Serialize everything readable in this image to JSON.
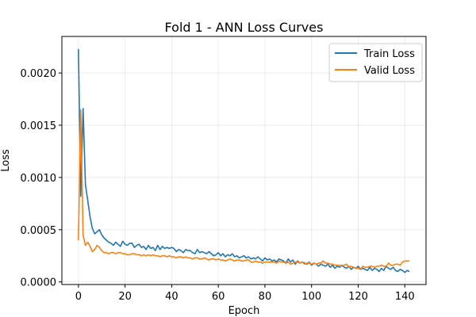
{
  "chart_data": {
    "type": "line",
    "title": "Fold 1 - ANN Loss Curves",
    "xlabel": "Epoch",
    "ylabel": "Loss",
    "xlim": [
      -7.1,
      149.1
    ],
    "ylim": [
      -2.5e-05,
      0.00235
    ],
    "xticks": [
      0,
      20,
      40,
      60,
      80,
      100,
      120,
      140
    ],
    "yticks": [
      0.0,
      0.0005,
      0.001,
      0.0015,
      0.002
    ],
    "xtick_labels": [
      "0",
      "20",
      "40",
      "60",
      "80",
      "100",
      "120",
      "140"
    ],
    "ytick_labels": [
      "0.0000",
      "0.0005",
      "0.0010",
      "0.0015",
      "0.0020"
    ],
    "grid": true,
    "legend_position": "top-right",
    "series": [
      {
        "name": "Train Loss",
        "color": "#1f77b4",
        "values": [
          0.00223,
          0.00082,
          0.00166,
          0.00093,
          0.00078,
          0.00062,
          0.00051,
          0.00046,
          0.00048,
          0.0005,
          0.00045,
          0.00042,
          0.0004,
          0.00038,
          0.00037,
          0.00035,
          0.00038,
          0.00036,
          0.00034,
          0.00039,
          0.00036,
          0.00035,
          0.00037,
          0.00037,
          0.00033,
          0.00035,
          0.00036,
          0.00033,
          0.00034,
          0.00031,
          0.00035,
          0.00032,
          0.00033,
          0.0003,
          0.00035,
          0.00031,
          0.00034,
          0.00032,
          0.00033,
          0.00032,
          0.00033,
          0.00032,
          0.00029,
          0.00031,
          0.0003,
          0.00028,
          0.00031,
          0.0003,
          0.0003,
          0.00028,
          0.00027,
          0.00031,
          0.00028,
          0.00029,
          0.00028,
          0.00027,
          0.00029,
          0.00027,
          0.00025,
          0.00026,
          0.00028,
          0.00025,
          0.00027,
          0.00024,
          0.00026,
          0.00025,
          0.00027,
          0.00024,
          0.00025,
          0.00023,
          0.00024,
          0.00025,
          0.00023,
          0.00024,
          0.00022,
          0.00023,
          0.00022,
          0.00024,
          0.00022,
          0.0002,
          0.00023,
          0.00021,
          0.00022,
          0.0002,
          0.00021,
          0.00019,
          0.00022,
          0.00021,
          0.0002,
          0.00018,
          0.00022,
          0.00019,
          0.00021,
          0.00017,
          0.0002,
          0.00018,
          0.00019,
          0.00018,
          0.00017,
          0.00019,
          0.00016,
          0.00018,
          0.00017,
          0.00015,
          0.00017,
          0.00016,
          0.00015,
          0.00017,
          0.00014,
          0.00016,
          0.00013,
          0.00015,
          0.00014,
          0.00016,
          0.00014,
          0.00013,
          0.00015,
          0.00012,
          0.00014,
          0.00013,
          0.00015,
          0.00012,
          0.00013,
          0.00012,
          0.00011,
          0.00014,
          0.00011,
          0.00013,
          0.00012,
          0.0001,
          0.00013,
          0.00011,
          0.00015,
          0.00013,
          0.00012,
          0.00014,
          0.00011,
          0.0001,
          0.00012,
          0.00011,
          9e-05,
          0.00011,
          0.0001
        ]
      },
      {
        "name": "Valid Loss",
        "color": "#ff7f0e",
        "values": [
          0.0004,
          0.00165,
          0.00045,
          0.00035,
          0.00038,
          0.00034,
          0.00029,
          0.00031,
          0.00035,
          0.00033,
          0.0003,
          0.00028,
          0.00028,
          0.00027,
          0.00028,
          0.00028,
          0.00027,
          0.00028,
          0.00028,
          0.00027,
          0.00027,
          0.00026,
          0.00026,
          0.00027,
          0.00027,
          0.00026,
          0.00026,
          0.00025,
          0.00026,
          0.00025,
          0.00026,
          0.00025,
          0.00026,
          0.00025,
          0.00025,
          0.00024,
          0.00025,
          0.00025,
          0.00024,
          0.00025,
          0.00024,
          0.00024,
          0.00023,
          0.00024,
          0.00024,
          0.00023,
          0.00024,
          0.00023,
          0.00023,
          0.00022,
          0.00023,
          0.00023,
          0.00022,
          0.00022,
          0.00023,
          0.00022,
          0.00021,
          0.00022,
          0.00022,
          0.00021,
          0.00022,
          0.00021,
          0.00021,
          0.0002,
          0.00021,
          0.00022,
          0.00021,
          0.0002,
          0.00021,
          0.00021,
          0.0002,
          0.0002,
          0.00021,
          0.00021,
          0.00019,
          0.00019,
          0.0002,
          0.00019,
          0.00019,
          0.00018,
          0.00019,
          0.00019,
          0.00019,
          0.00019,
          0.00019,
          0.00018,
          0.0002,
          0.00019,
          0.00019,
          0.00018,
          0.00019,
          0.00017,
          0.00018,
          0.00019,
          0.00019,
          0.00018,
          0.00019,
          0.00017,
          0.00018,
          0.00018,
          0.00017,
          0.00018,
          0.00017,
          0.00018,
          0.00018,
          0.0002,
          0.00018,
          0.00018,
          0.00017,
          0.00017,
          0.00016,
          0.00016,
          0.00016,
          0.00015,
          0.00016,
          0.00017,
          0.00014,
          0.00015,
          0.00014,
          0.00013,
          0.00013,
          0.00012,
          0.00015,
          0.00014,
          0.00014,
          0.00015,
          0.00015,
          0.00014,
          0.00015,
          0.00015,
          0.00016,
          0.00015,
          0.00015,
          0.00018,
          0.00016,
          0.00016,
          0.00017,
          0.00017,
          0.00016,
          0.00019,
          0.0002,
          0.0002,
          0.0002
        ]
      }
    ]
  }
}
